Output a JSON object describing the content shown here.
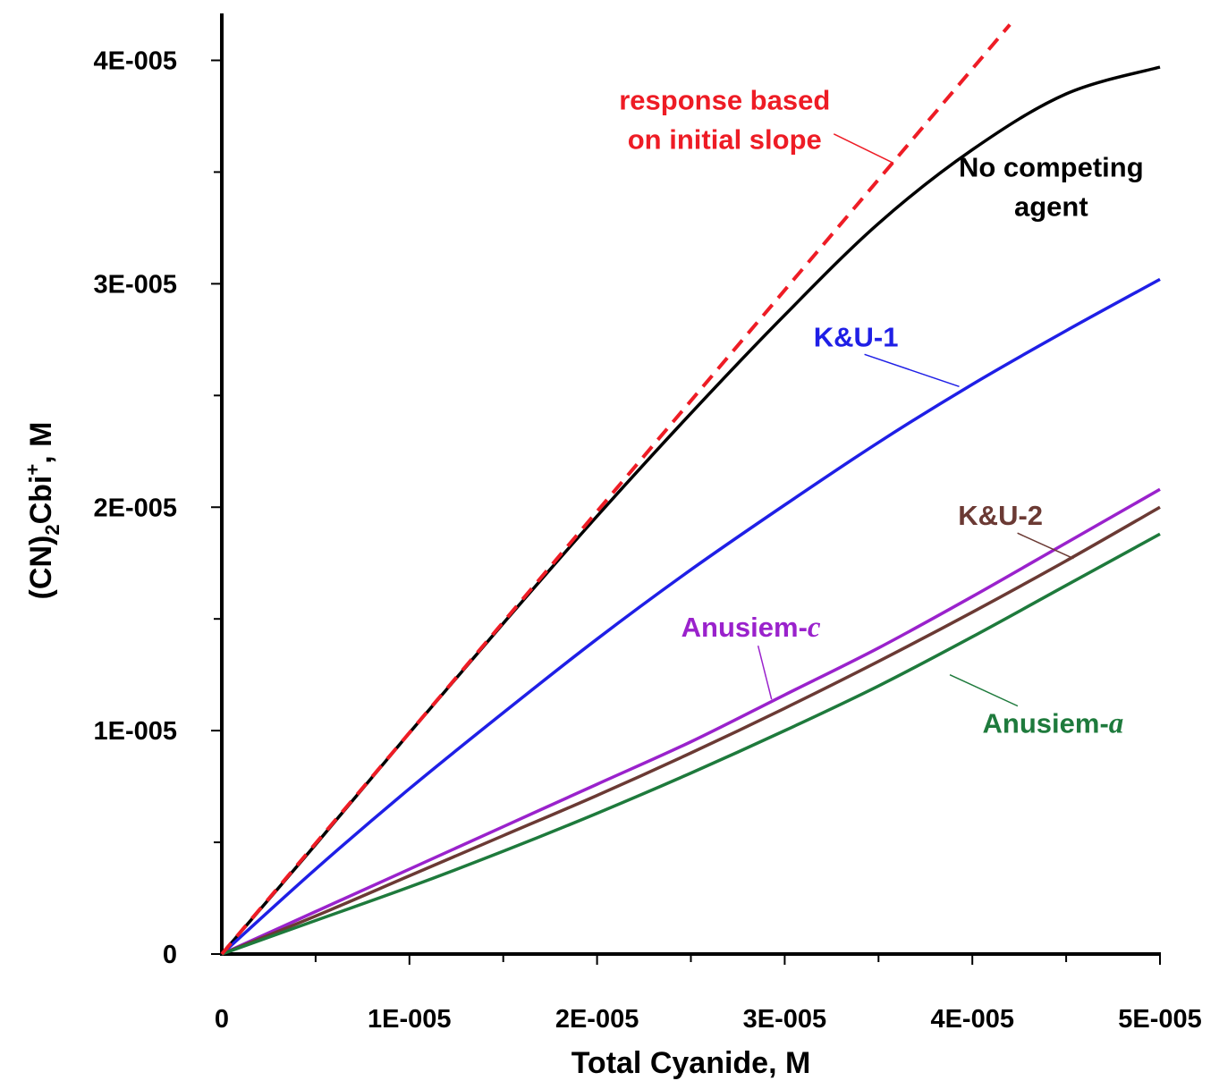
{
  "chart_data": {
    "type": "line",
    "xlabel": "Total Cyanide, M",
    "ylabel": {
      "pre": "(CN)",
      "sub": "2",
      "mid": "Cbi",
      "sup": "+",
      "post": ", M"
    },
    "xlim": [
      0,
      5e-05
    ],
    "ylim": [
      0,
      4.2e-05
    ],
    "x_ticks": [
      {
        "value": 0,
        "label": "0"
      },
      {
        "value": 1e-05,
        "label": "1E-005"
      },
      {
        "value": 2e-05,
        "label": "2E-005"
      },
      {
        "value": 3e-05,
        "label": "3E-005"
      },
      {
        "value": 4e-05,
        "label": "4E-005"
      },
      {
        "value": 5e-05,
        "label": "5E-005"
      }
    ],
    "x_minor_ticks": [
      5e-06,
      1.5e-05,
      2.5e-05,
      3.5e-05,
      4.5e-05
    ],
    "y_ticks": [
      {
        "value": 0,
        "label": "0"
      },
      {
        "value": 1e-05,
        "label": "1E-005"
      },
      {
        "value": 2e-05,
        "label": "2E-005"
      },
      {
        "value": 3e-05,
        "label": "3E-005"
      },
      {
        "value": 4e-05,
        "label": "4E-005"
      }
    ],
    "y_minor_ticks": [
      5e-06,
      1.5e-05,
      2.5e-05,
      3.5e-05
    ],
    "grid": false,
    "series": [
      {
        "key": "initial_slope",
        "name": "response based on initial slope",
        "color": "#ee1c25",
        "dash": true,
        "x": [
          0,
          4.2e-05
        ],
        "y": [
          0,
          4.16e-05
        ]
      },
      {
        "key": "no_competing",
        "name": "No competing agent",
        "color": "#000000",
        "dash": false,
        "x": [
          0,
          5e-06,
          1e-05,
          1.5e-05,
          2e-05,
          2.5e-05,
          3e-05,
          3.5e-05,
          4e-05,
          4.5e-05,
          5e-05
        ],
        "y": [
          0,
          4.9e-06,
          9.9e-06,
          1.48e-05,
          1.96e-05,
          2.42e-05,
          2.86e-05,
          3.27e-05,
          3.6e-05,
          3.85e-05,
          3.97e-05
        ]
      },
      {
        "key": "ku1",
        "name": "K&U-1",
        "color": "#1f1fe6",
        "dash": false,
        "x": [
          0,
          5e-06,
          1e-05,
          1.5e-05,
          2e-05,
          2.5e-05,
          3e-05,
          3.5e-05,
          4e-05,
          4.5e-05,
          5e-05
        ],
        "y": [
          0,
          3.8e-06,
          7.4e-06,
          1.08e-05,
          1.41e-05,
          1.72e-05,
          2.01e-05,
          2.29e-05,
          2.55e-05,
          2.79e-05,
          3.02e-05
        ]
      },
      {
        "key": "anusiem_c",
        "name": "Anusiem-c",
        "color": "#9a22cc",
        "dash": false,
        "x": [
          0,
          5e-06,
          1e-05,
          1.5e-05,
          2e-05,
          2.5e-05,
          3e-05,
          3.5e-05,
          4e-05,
          4.5e-05,
          5e-05
        ],
        "y": [
          0,
          1.9e-06,
          3.8e-06,
          5.7e-06,
          7.6e-06,
          9.5e-06,
          1.16e-05,
          1.37e-05,
          1.6e-05,
          1.84e-05,
          2.08e-05
        ]
      },
      {
        "key": "ku2",
        "name": "K&U-2",
        "color": "#6b3a34",
        "dash": false,
        "x": [
          0,
          5e-06,
          1e-05,
          1.5e-05,
          2e-05,
          2.5e-05,
          3e-05,
          3.5e-05,
          4e-05,
          4.5e-05,
          5e-05
        ],
        "y": [
          0,
          1.7e-06,
          3.5e-06,
          5.3e-06,
          7.1e-06,
          9e-06,
          1.1e-05,
          1.31e-05,
          1.53e-05,
          1.76e-05,
          2e-05
        ]
      },
      {
        "key": "anusiem_a",
        "name": "Anusiem-a",
        "color": "#1e7a3c",
        "dash": false,
        "x": [
          0,
          5e-06,
          1e-05,
          1.5e-05,
          2e-05,
          2.5e-05,
          3e-05,
          3.5e-05,
          4e-05,
          4.5e-05,
          5e-05
        ],
        "y": [
          0,
          1.5e-06,
          3e-06,
          4.6e-06,
          6.3e-06,
          8.1e-06,
          1e-05,
          1.2e-05,
          1.42e-05,
          1.65e-05,
          1.88e-05
        ]
      }
    ],
    "annotations": [
      {
        "key": "initial_slope",
        "lines": [
          "response based",
          "on initial slope"
        ],
        "color": "#ee1c25",
        "anchor": "middle",
        "at": [
          2.68e-05,
          3.78e-05
        ],
        "leader_to": [
          3.58e-05,
          3.54e-05
        ]
      },
      {
        "key": "no_competing",
        "lines": [
          "No competing",
          "agent"
        ],
        "color": "#000000",
        "anchor": "middle",
        "at": [
          4.42e-05,
          3.48e-05
        ],
        "leader_to": null
      },
      {
        "key": "ku1",
        "lines": [
          "K&U-1"
        ],
        "color": "#1f1fe6",
        "anchor": "middle",
        "at": [
          3.38e-05,
          2.72e-05
        ],
        "leader_to": [
          3.93e-05,
          2.54e-05
        ]
      },
      {
        "key": "ku2",
        "lines": [
          "K&U-2"
        ],
        "color": "#6b3a34",
        "anchor": "middle",
        "at": [
          4.15e-05,
          1.92e-05
        ],
        "leader_to": [
          4.54e-05,
          1.77e-05
        ]
      },
      {
        "key": "anusiem_c",
        "lines": [
          "Anusiem-"
        ],
        "italic": "c",
        "color": "#9a22cc",
        "anchor": "middle",
        "at": [
          2.82e-05,
          1.42e-05
        ],
        "leader_to": [
          2.93e-05,
          1.14e-05
        ]
      },
      {
        "key": "anusiem_a",
        "lines": [
          "Anusiem-"
        ],
        "italic": "a",
        "color": "#1e7a3c",
        "anchor": "middle",
        "at": [
          4.43e-05,
          9.9e-06
        ],
        "leader_to": [
          3.88e-05,
          1.25e-05
        ]
      }
    ]
  }
}
